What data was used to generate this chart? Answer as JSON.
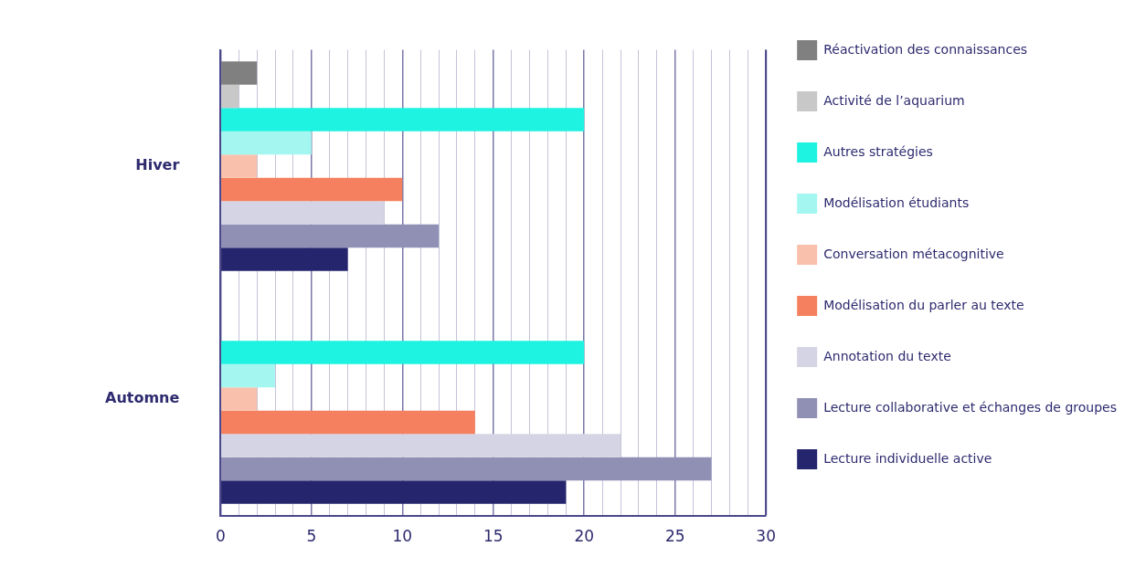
{
  "chart_data": {
    "type": "bar",
    "orientation": "horizontal",
    "categories": [
      "Hiver",
      "Automne"
    ],
    "series": [
      {
        "name": "Réactivation des connaissances",
        "color": "#808080",
        "values": [
          2,
          null
        ]
      },
      {
        "name": "Activité de l’aquarium",
        "color": "#c8c8c8",
        "values": [
          1,
          null
        ]
      },
      {
        "name": "Autres stratégies",
        "color": "#1ef2e0",
        "values": [
          20,
          20
        ]
      },
      {
        "name": "Modélisation étudiants",
        "color": "#a4f7f1",
        "values": [
          5,
          3
        ]
      },
      {
        "name": "Conversation métacognitive",
        "color": "#f9c0ab",
        "values": [
          2,
          2
        ]
      },
      {
        "name": "Modélisation du parler au texte",
        "color": "#f5805f",
        "values": [
          10,
          14
        ]
      },
      {
        "name": "Annotation du texte",
        "color": "#d4d4e4",
        "values": [
          9,
          22
        ]
      },
      {
        "name": "Lecture collaborative et échanges de groupes",
        "color": "#9090b5",
        "values": [
          12,
          27
        ]
      },
      {
        "name": "Lecture individuelle active",
        "color": "#25256e",
        "values": [
          7,
          19
        ]
      }
    ],
    "xlim": [
      0,
      30
    ],
    "xticks": [
      0,
      {
        "value": 1,
        "label": null
      },
      {
        "value": 2,
        "label": null
      },
      {
        "value": 3,
        "label": null
      },
      {
        "value": 4,
        "label": null
      },
      5,
      {
        "value": 6,
        "label": null
      },
      {
        "value": 7,
        "label": null
      },
      {
        "value": 8,
        "label": null
      },
      {
        "value": 9,
        "label": null
      },
      10,
      {
        "value": 11,
        "label": null
      },
      {
        "value": 12,
        "label": null
      },
      {
        "value": 13,
        "label": null
      },
      {
        "value": 14,
        "label": null
      },
      15,
      {
        "value": 16,
        "label": null
      },
      {
        "value": 17,
        "label": null
      },
      {
        "value": 18,
        "label": null
      },
      {
        "value": 19,
        "label": null
      },
      20,
      {
        "value": 21,
        "label": null
      },
      {
        "value": 22,
        "label": null
      },
      {
        "value": 23,
        "label": null
      },
      {
        "value": 24,
        "label": null
      },
      25,
      {
        "value": 26,
        "label": null
      },
      {
        "value": 27,
        "label": null
      },
      {
        "value": 28,
        "label": null
      },
      {
        "value": 29,
        "label": null
      },
      30
    ],
    "grid": "x",
    "legend": "right"
  }
}
